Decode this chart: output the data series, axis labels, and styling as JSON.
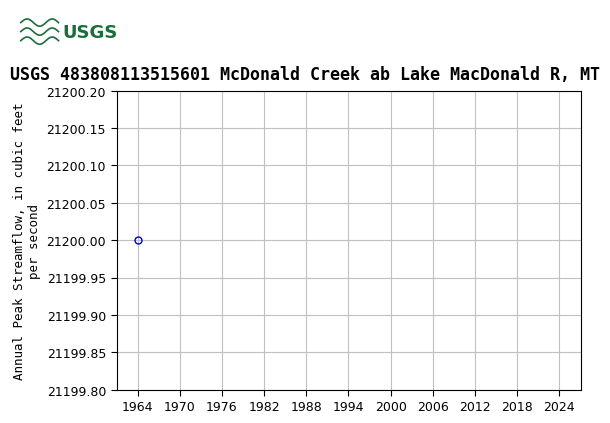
{
  "title": "USGS 483808113515601 McDonald Creek ab Lake MacDonald R, MT",
  "ylabel": "Annual Peak Streamflow, in cubic feet\nper second",
  "data_x": [
    1964
  ],
  "data_y": [
    21200.0
  ],
  "marker": "o",
  "marker_color": "#0000cd",
  "marker_size": 5,
  "marker_facecolor": "none",
  "xlim": [
    1961,
    2027
  ],
  "ylim": [
    21199.8,
    21200.2
  ],
  "xticks": [
    1964,
    1970,
    1976,
    1982,
    1988,
    1994,
    2000,
    2006,
    2012,
    2018,
    2024
  ],
  "yticks": [
    21199.8,
    21199.85,
    21199.9,
    21199.95,
    21200.0,
    21200.05,
    21200.1,
    21200.15,
    21200.2
  ],
  "grid_color": "#c0c0c0",
  "grid_linestyle": "-",
  "grid_linewidth": 0.8,
  "title_fontsize": 12,
  "axis_fontsize": 9,
  "tick_fontsize": 9,
  "header_color": "#1a6e39",
  "background_color": "#ffffff",
  "plot_bg_color": "#ffffff",
  "border_color": "#000000",
  "font_family": "DejaVu Sans"
}
